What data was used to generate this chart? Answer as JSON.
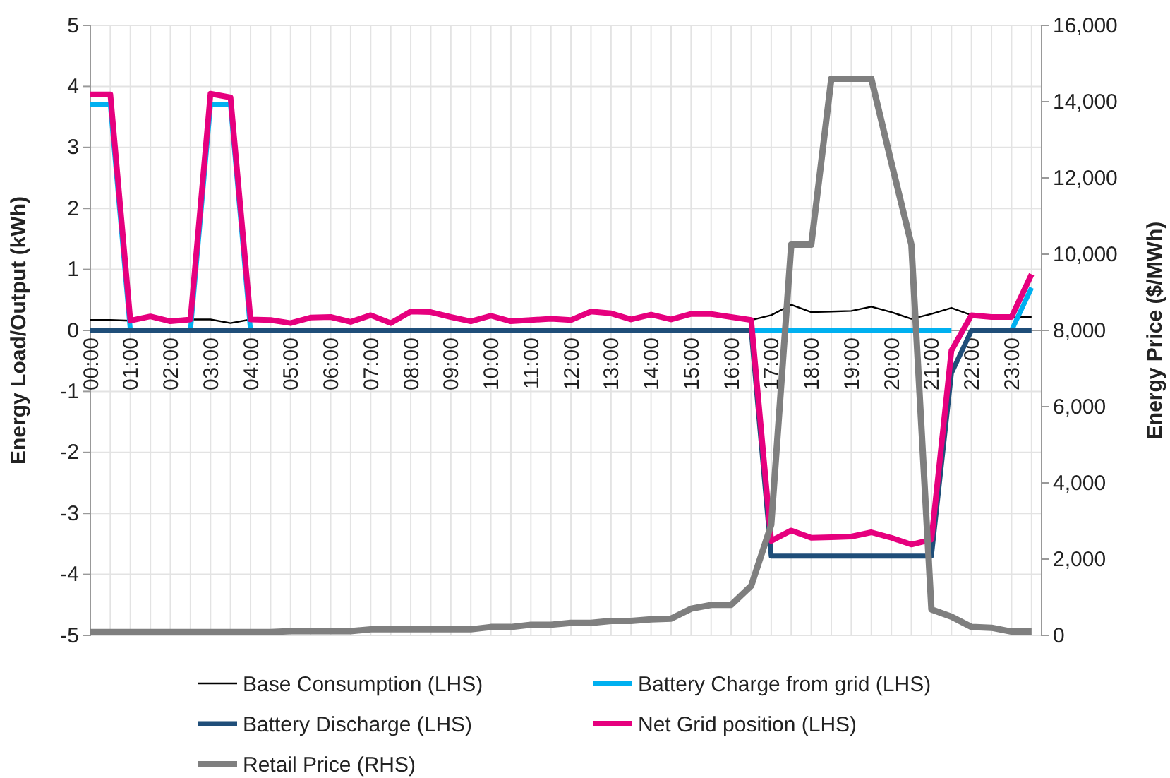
{
  "chart_data": {
    "type": "line",
    "categories": [
      "00:00",
      null,
      "01:00",
      null,
      "02:00",
      null,
      "03:00",
      null,
      "04:00",
      null,
      "05:00",
      null,
      "06:00",
      null,
      "07:00",
      null,
      "08:00",
      null,
      "09:00",
      null,
      "10:00",
      null,
      "11:00",
      null,
      "12:00",
      null,
      "13:00",
      null,
      "14:00",
      null,
      "15:00",
      null,
      "16:00",
      null,
      "17:00",
      null,
      "18:00",
      null,
      "19:00",
      null,
      "20:00",
      null,
      "21:00",
      null,
      "22:00",
      null,
      "23:00",
      null
    ],
    "series": [
      {
        "name": "Base Consumption (LHS)",
        "color": "#000000",
        "values": [
          0.17,
          0.17,
          0.16,
          null,
          null,
          0.18,
          0.18,
          0.12,
          0.18,
          null,
          null,
          null,
          null,
          null,
          null,
          null,
          null,
          null,
          null,
          null,
          null,
          null,
          null,
          null,
          null,
          null,
          null,
          null,
          null,
          null,
          null,
          null,
          null,
          0.17,
          0.25,
          0.42,
          0.3,
          0.31,
          0.32,
          0.39,
          0.3,
          0.19,
          0.27,
          0.37,
          0.25,
          0.22,
          0.22,
          0.22
        ]
      },
      {
        "name": "Battery Charge from grid (LHS)",
        "color": "#00b0f0",
        "values": [
          3.7,
          3.7,
          0,
          null,
          null,
          0,
          3.7,
          3.7,
          0,
          null,
          null,
          null,
          null,
          null,
          null,
          null,
          null,
          null,
          null,
          null,
          null,
          null,
          null,
          null,
          null,
          null,
          null,
          null,
          null,
          null,
          null,
          null,
          null,
          0,
          0,
          0,
          0,
          0,
          0,
          0,
          0,
          0,
          0,
          0,
          null,
          null,
          0,
          0.7
        ]
      },
      {
        "name": "Battery Discharge (LHS)",
        "color": "#1f4e79",
        "values": [
          0,
          0,
          0,
          0,
          0,
          0,
          0,
          0,
          0,
          0,
          0,
          0,
          0,
          0,
          0,
          0,
          0,
          0,
          0,
          0,
          0,
          0,
          0,
          0,
          0,
          0,
          0,
          0,
          0,
          0,
          0,
          0,
          0,
          0,
          -3.7,
          -3.7,
          -3.7,
          -3.7,
          -3.7,
          -3.7,
          -3.7,
          -3.7,
          -3.7,
          -0.7,
          0,
          0,
          0,
          0
        ]
      },
      {
        "name": "Net Grid position (LHS)",
        "color": "#e6007e",
        "values": [
          3.87,
          3.87,
          0.16,
          0.23,
          0.15,
          0.18,
          3.88,
          3.82,
          0.18,
          0.17,
          0.12,
          0.21,
          0.22,
          0.14,
          0.25,
          0.12,
          0.31,
          0.3,
          0.22,
          0.15,
          0.24,
          0.15,
          0.17,
          0.19,
          0.17,
          0.31,
          0.28,
          0.18,
          0.26,
          0.18,
          0.27,
          0.27,
          0.22,
          0.17,
          -3.45,
          -3.28,
          -3.4,
          -3.39,
          -3.38,
          -3.31,
          -3.4,
          -3.51,
          -3.43,
          -0.33,
          0.25,
          0.22,
          0.22,
          0.92
        ]
      },
      {
        "name": "Retail Price (RHS)",
        "color": "#7f7f7f",
        "axis": "y2",
        "values": [
          90,
          90,
          90,
          90,
          90,
          90,
          90,
          90,
          90,
          90,
          110,
          110,
          110,
          110,
          160,
          160,
          160,
          160,
          160,
          160,
          220,
          220,
          280,
          280,
          330,
          330,
          380,
          380,
          420,
          440,
          700,
          800,
          800,
          1300,
          2900,
          10250,
          10250,
          14600,
          14600,
          14600,
          12400,
          10250,
          680,
          490,
          220,
          200,
          100,
          100
        ]
      }
    ],
    "ylabel": "Energy Load/Output (kWh)",
    "y2label": "Energy Price ($/MWh)",
    "ylim": [
      -5,
      5
    ],
    "yticks": [
      -5,
      -4,
      -3,
      -2,
      -1,
      0,
      1,
      2,
      3,
      4,
      5
    ],
    "y2lim": [
      0,
      16000
    ],
    "y2ticks": [
      0,
      {
        "value": 2000,
        "label": "2,000"
      },
      {
        "value": 4000,
        "label": "4,000"
      },
      {
        "value": 6000,
        "label": "6,000"
      },
      {
        "value": 8000,
        "label": "8,000"
      },
      {
        "value": 10000,
        "label": "10,000"
      },
      {
        "value": 12000,
        "label": "12,000"
      },
      {
        "value": 14000,
        "label": "14,000"
      },
      {
        "value": 16000,
        "label": "16,000"
      }
    ],
    "grid": true,
    "legend": "bottom",
    "marker": "none",
    "line_style": "solid"
  }
}
